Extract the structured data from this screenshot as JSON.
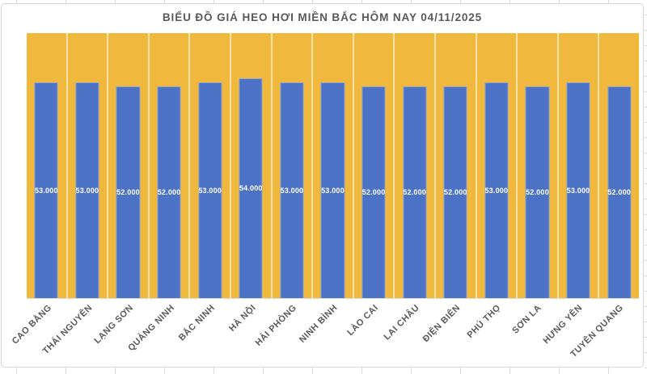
{
  "chart_data": {
    "type": "bar",
    "title": "BIỂU ĐỒ GIÁ HEO HƠI MIỀN BẮC HÔM NAY 04/11/2025",
    "categories": [
      "CAO BẰNG",
      "THÁI NGUYÊN",
      "LẠNG SƠN",
      "QUẢNG NINH",
      "BẮC NINH",
      "HÀ NỘI",
      "HẢI PHÒNG",
      "NINH BÌNH",
      "LÀO CAI",
      "LAI CHÂU",
      "ĐIỆN BIÊN",
      "PHÚ THỌ",
      "SƠN LA",
      "HƯNG YÊN",
      "TUYÊN QUANG"
    ],
    "values": [
      53000,
      53000,
      52000,
      52000,
      53000,
      54000,
      53000,
      53000,
      52000,
      52000,
      52000,
      53000,
      52000,
      53000,
      52000
    ],
    "value_labels": [
      "53.000",
      "53.000",
      "52.000",
      "52.000",
      "53.000",
      "54.000",
      "53.000",
      "53.000",
      "52.000",
      "52.000",
      "52.000",
      "53.000",
      "52.000",
      "53.000",
      "52.000"
    ],
    "xlabel": "",
    "ylabel": "",
    "ylim": [
      0,
      65000
    ],
    "grid": false,
    "legend": "none",
    "data_label_position": "inside-center",
    "x_tick_rotation": 45,
    "colors": {
      "bar": "#4b72c4",
      "plot_background": "#f0b93e",
      "column_separator": "#f7e1a6",
      "data_label_text": "#ffffff",
      "axis_text": "#595959",
      "title_text": "#595959",
      "chart_background": "#ffffff"
    }
  }
}
